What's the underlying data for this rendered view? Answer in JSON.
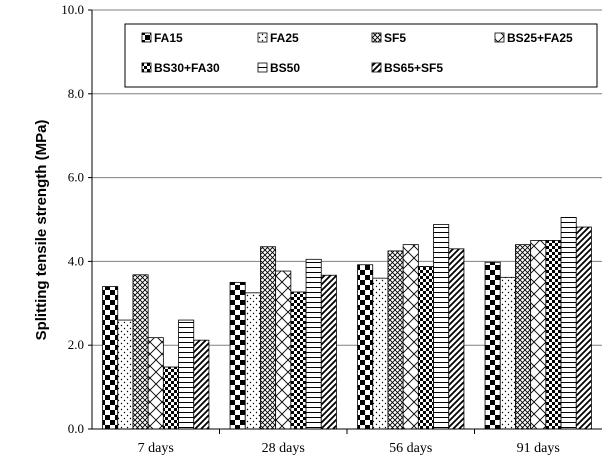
{
  "chart_data": {
    "type": "bar",
    "title": "",
    "xlabel": "",
    "ylabel": "Splitting tensile strength (MPa)",
    "ylim": [
      0,
      10
    ],
    "yticks": [
      "0.0",
      "2.0",
      "4.0",
      "6.0",
      "8.0",
      "10.0"
    ],
    "grid": true,
    "legend_position": "top",
    "categories": [
      "7 days",
      "28 days",
      "56 days",
      "91 days"
    ],
    "series": [
      {
        "name": "FA15",
        "pattern": "checker-large",
        "values": [
          3.4,
          3.5,
          3.92,
          3.98
        ]
      },
      {
        "name": "FA25",
        "pattern": "dots",
        "values": [
          2.6,
          3.25,
          3.6,
          3.62
        ]
      },
      {
        "name": "SF5",
        "pattern": "diag-cross",
        "values": [
          3.68,
          4.35,
          4.25,
          4.4
        ]
      },
      {
        "name": "BS25+FA25",
        "pattern": "big-diamond",
        "values": [
          2.18,
          3.77,
          4.4,
          4.5
        ]
      },
      {
        "name": "BS30+FA30",
        "pattern": "checker-small",
        "values": [
          1.48,
          3.27,
          3.88,
          4.5
        ]
      },
      {
        "name": "BS50",
        "pattern": "horizontal",
        "values": [
          2.6,
          4.05,
          4.88,
          5.05
        ]
      },
      {
        "name": "BS65+SF5",
        "pattern": "diagonal",
        "values": [
          2.12,
          3.67,
          4.3,
          4.82
        ]
      }
    ]
  }
}
